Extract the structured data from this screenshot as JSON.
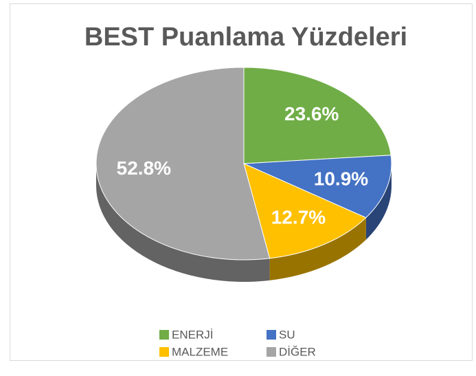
{
  "chart_data": {
    "type": "pie3d",
    "title": "BEST Puanlama Yüzdeleri",
    "categories": [
      "ENERJİ",
      "SU",
      "MALZEME",
      "DİĞER"
    ],
    "values": [
      23.6,
      10.9,
      12.7,
      52.8
    ],
    "value_labels": [
      "23.6%",
      "10.9%",
      "12.7%",
      "52.8%"
    ],
    "colors": [
      "#70ad47",
      "#4472c4",
      "#ffc000",
      "#a5a5a5"
    ]
  }
}
